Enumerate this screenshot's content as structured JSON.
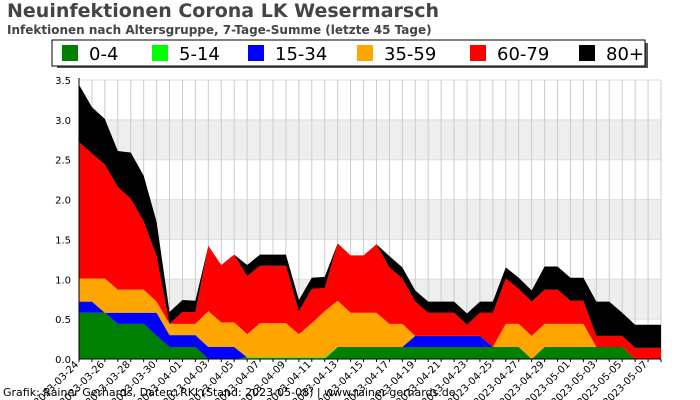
{
  "title": "Neuinfektionen Corona LK Wesermarsch",
  "subtitle": "Infektionen nach Altersgruppe, 7-Tage-Summe (letzte 45 Tage)",
  "credit": "Grafik: Rainer Gerhards, Daten: RKI (Stand: 2023-05-08) | www.rainer-gerhards.de",
  "chart_data": {
    "type": "area",
    "stacked": true,
    "title": "Neuinfektionen Corona LK Wesermarsch",
    "subtitle": "Infektionen nach Altersgruppe, 7-Tage-Summe (letzte 45 Tage)",
    "xlabel": "",
    "ylabel": "",
    "ylim": [
      0,
      3.5
    ],
    "yticks": [
      "0.0",
      "0.5",
      "1.0",
      "1.5",
      "2.0",
      "2.5",
      "3.0",
      "3.5"
    ],
    "grid": "horizontal bands",
    "legend_position": "top",
    "x_tick_labels": [
      "2023-03-24",
      "2023-03-26",
      "2023-03-28",
      "2023-03-30",
      "2023-04-01",
      "2023-04-03",
      "2023-04-05",
      "2023-04-07",
      "2023-04-09",
      "2023-04-11",
      "2023-04-13",
      "2023-04-15",
      "2023-04-17",
      "2023-04-19",
      "2023-04-21",
      "2023-04-23",
      "2023-04-25",
      "2023-04-27",
      "2023-04-29",
      "2023-05-01",
      "2023-05-03",
      "2023-05-05",
      "2023-05-07"
    ],
    "x": [
      "2023-03-24",
      "2023-03-25",
      "2023-03-26",
      "2023-03-27",
      "2023-03-28",
      "2023-03-29",
      "2023-03-30",
      "2023-03-31",
      "2023-04-01",
      "2023-04-02",
      "2023-04-03",
      "2023-04-04",
      "2023-04-05",
      "2023-04-06",
      "2023-04-07",
      "2023-04-08",
      "2023-04-09",
      "2023-04-10",
      "2023-04-11",
      "2023-04-12",
      "2023-04-13",
      "2023-04-14",
      "2023-04-15",
      "2023-04-16",
      "2023-04-17",
      "2023-04-18",
      "2023-04-19",
      "2023-04-20",
      "2023-04-21",
      "2023-04-22",
      "2023-04-23",
      "2023-04-24",
      "2023-04-25",
      "2023-04-26",
      "2023-04-27",
      "2023-04-28",
      "2023-04-29",
      "2023-04-30",
      "2023-05-01",
      "2023-05-02",
      "2023-05-03",
      "2023-05-04",
      "2023-05-05",
      "2023-05-06",
      "2023-05-07",
      "2023-05-08"
    ],
    "series": [
      {
        "name": "0-4",
        "color": "#008000",
        "values": [
          0.58,
          0.58,
          0.58,
          0.44,
          0.44,
          0.44,
          0.29,
          0.15,
          0.15,
          0.15,
          0.0,
          0.0,
          0.0,
          0.0,
          0.0,
          0.0,
          0.0,
          0.0,
          0.0,
          0.0,
          0.15,
          0.15,
          0.15,
          0.15,
          0.15,
          0.15,
          0.15,
          0.15,
          0.15,
          0.15,
          0.15,
          0.15,
          0.15,
          0.15,
          0.15,
          0.0,
          0.15,
          0.15,
          0.15,
          0.15,
          0.15,
          0.15,
          0.15,
          0.0,
          0.0,
          0.0
        ]
      },
      {
        "name": "5-14",
        "color": "#00ff00",
        "values": [
          0,
          0,
          0,
          0,
          0,
          0,
          0,
          0,
          0,
          0,
          0,
          0,
          0,
          0.02,
          0.02,
          0.02,
          0.02,
          0.02,
          0.02,
          0.02,
          0,
          0,
          0,
          0,
          0,
          0,
          0,
          0,
          0,
          0,
          0,
          0,
          0,
          0,
          0,
          0,
          0,
          0,
          0,
          0,
          0,
          0,
          0,
          0,
          0,
          0
        ]
      },
      {
        "name": "15-34",
        "color": "#0000ff",
        "values": [
          0.14,
          0.14,
          0.0,
          0.14,
          0.14,
          0.14,
          0.29,
          0.15,
          0.15,
          0.15,
          0.15,
          0.15,
          0.15,
          0.0,
          0.0,
          0.0,
          0.0,
          0.0,
          0.0,
          0.0,
          0.0,
          0.0,
          0.0,
          0.0,
          0.0,
          0.0,
          0.14,
          0.14,
          0.14,
          0.14,
          0.14,
          0.14,
          0.0,
          0.0,
          0.0,
          0.0,
          0.0,
          0.0,
          0.0,
          0.0,
          0.0,
          0.0,
          0.0,
          0.0,
          0.0,
          0.0
        ]
      },
      {
        "name": "35-59",
        "color": "#ffa500",
        "values": [
          0.29,
          0.29,
          0.43,
          0.29,
          0.29,
          0.29,
          0.14,
          0.14,
          0.14,
          0.14,
          0.45,
          0.31,
          0.31,
          0.29,
          0.43,
          0.43,
          0.43,
          0.29,
          0.43,
          0.58,
          0.58,
          0.43,
          0.43,
          0.43,
          0.29,
          0.29,
          0.0,
          0.0,
          0.0,
          0.0,
          0.0,
          0.0,
          0.0,
          0.29,
          0.29,
          0.29,
          0.29,
          0.29,
          0.29,
          0.29,
          0.0,
          0.0,
          0.0,
          0.0,
          0.0,
          0.0
        ]
      },
      {
        "name": "60-79",
        "color": "#ff0000",
        "values": [
          1.71,
          1.57,
          1.43,
          1.29,
          1.14,
          0.86,
          0.57,
          0.0,
          0.15,
          0.15,
          0.82,
          0.72,
          0.85,
          0.73,
          0.72,
          0.72,
          0.72,
          0.29,
          0.43,
          0.29,
          0.72,
          0.72,
          0.72,
          0.86,
          0.71,
          0.57,
          0.43,
          0.29,
          0.29,
          0.29,
          0.14,
          0.29,
          0.43,
          0.57,
          0.44,
          0.43,
          0.43,
          0.43,
          0.29,
          0.29,
          0.14,
          0.14,
          0.14,
          0.14,
          0.14,
          0.14
        ]
      },
      {
        "name": "80+",
        "color": "#000000",
        "values": [
          0.72,
          0.58,
          0.57,
          0.45,
          0.58,
          0.57,
          0.43,
          0.15,
          0.15,
          0.14,
          0.0,
          0.0,
          0.0,
          0.14,
          0.14,
          0.14,
          0.14,
          0.14,
          0.14,
          0.14,
          0.0,
          0.0,
          0.0,
          0.0,
          0.14,
          0.14,
          0.14,
          0.14,
          0.14,
          0.14,
          0.14,
          0.14,
          0.14,
          0.14,
          0.14,
          0.14,
          0.29,
          0.29,
          0.29,
          0.29,
          0.43,
          0.43,
          0.29,
          0.29,
          0.29,
          0.29
        ]
      }
    ]
  }
}
